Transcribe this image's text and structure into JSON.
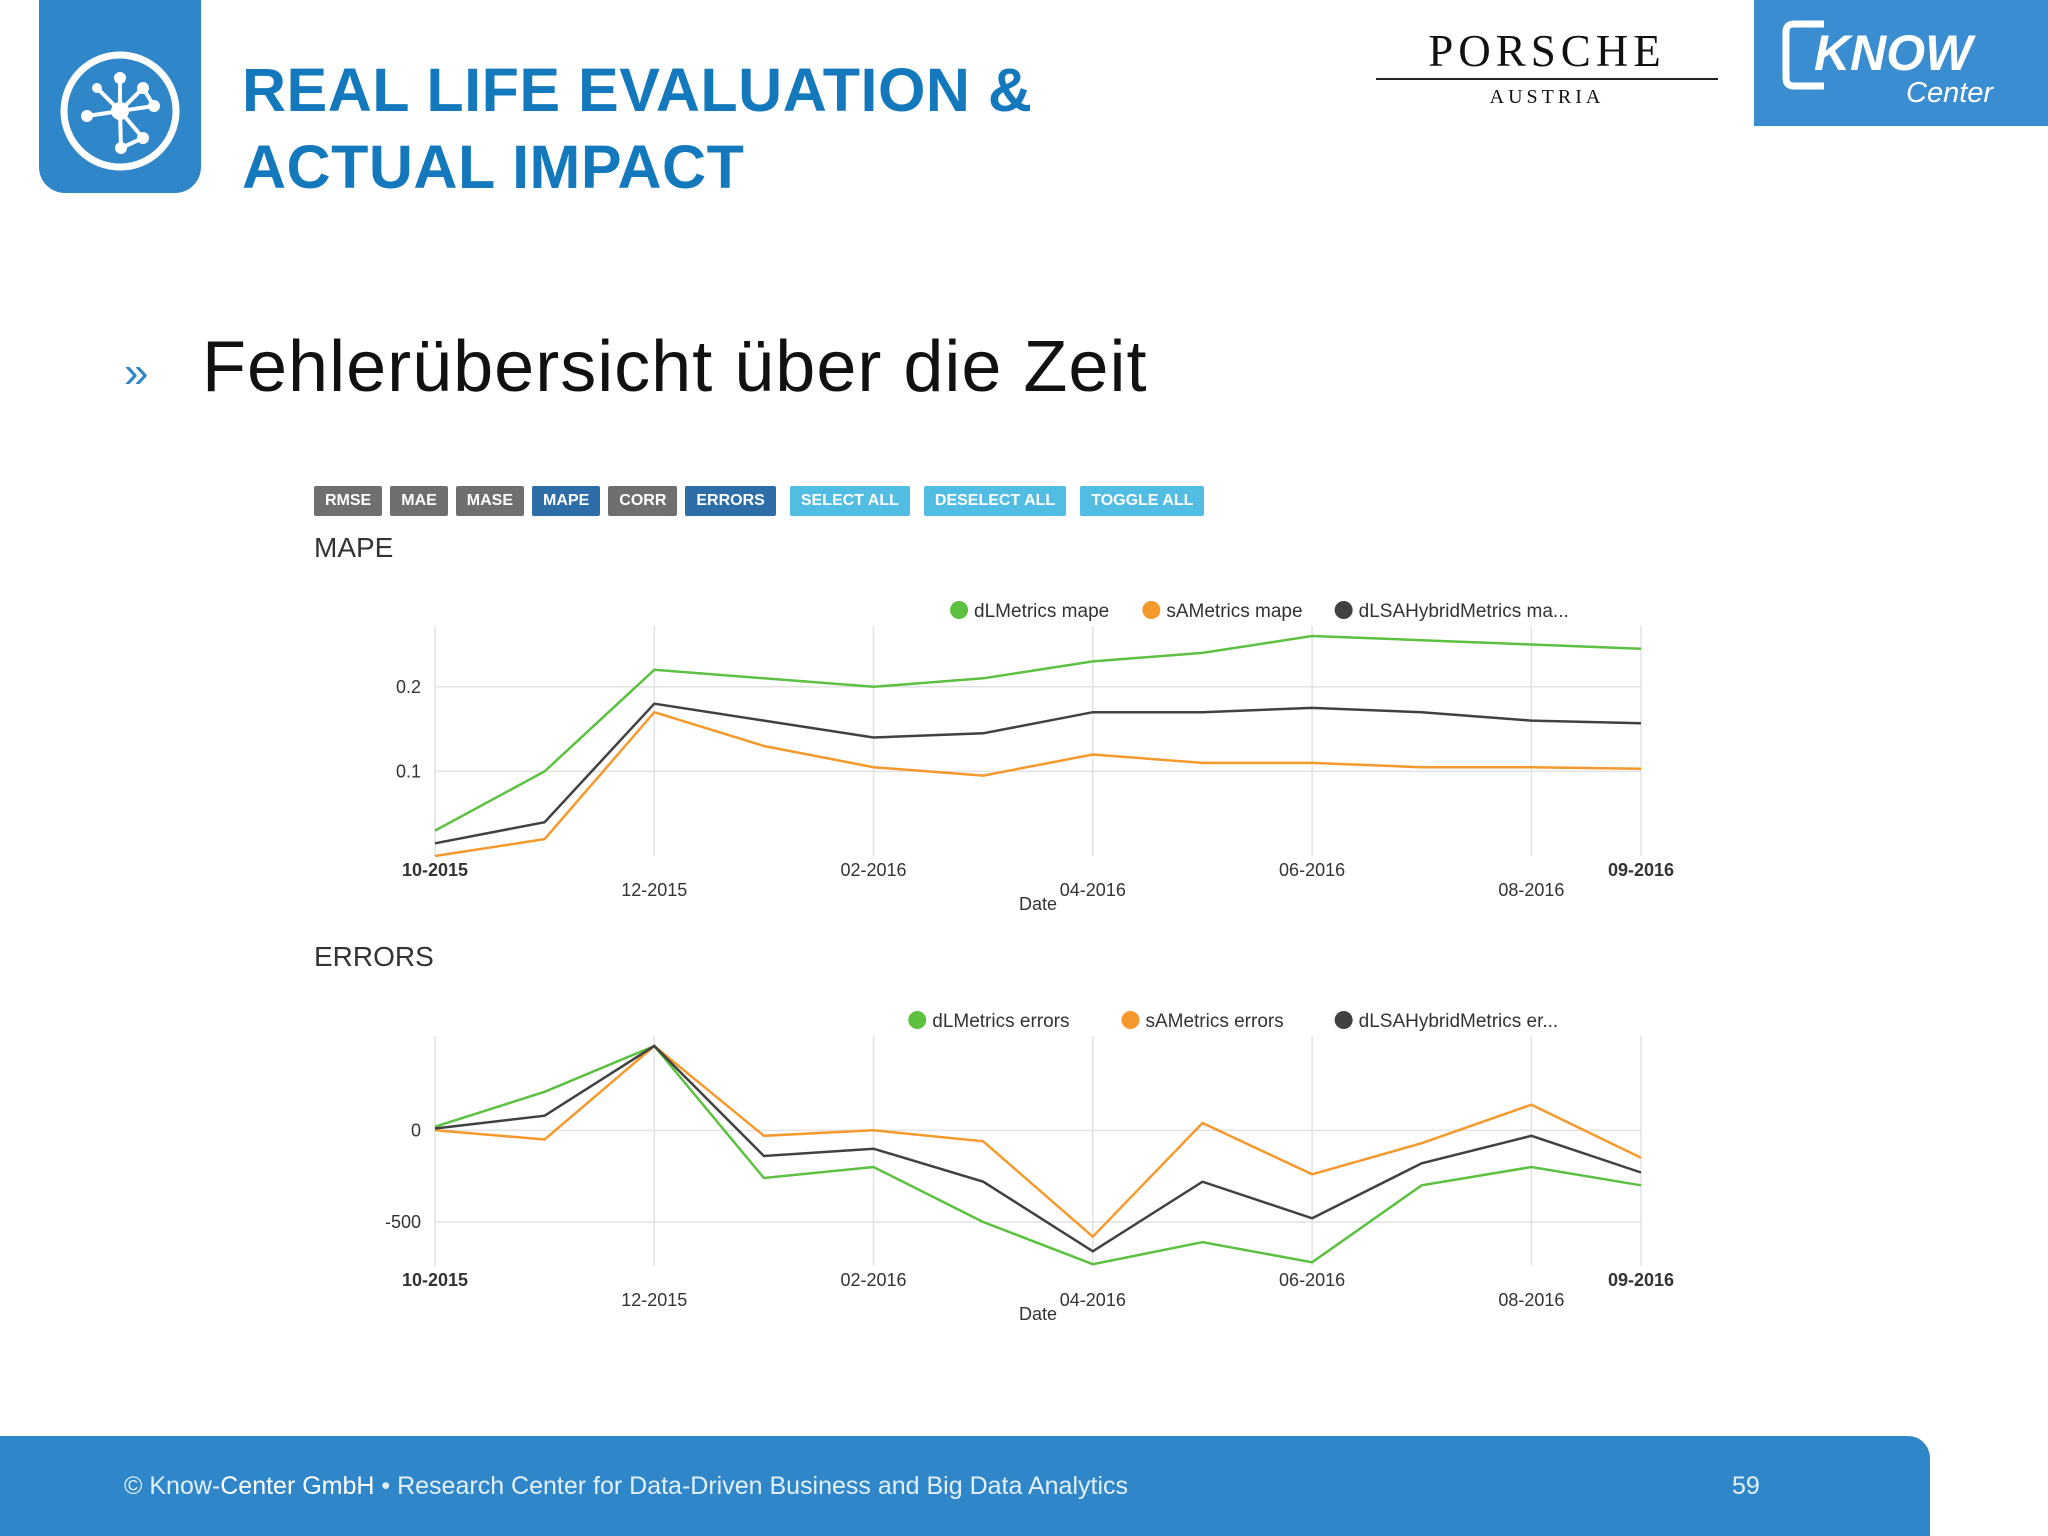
{
  "header": {
    "title_line1": "REAL LIFE EVALUATION &",
    "title_line2": "ACTUAL IMPACT",
    "partner_name": "PORSCHE",
    "partner_sub": "AUSTRIA",
    "brand_top": "KNOW",
    "brand_bottom": "Center"
  },
  "main": {
    "bullet": "»",
    "subtitle": "Fehlerübersicht über die Zeit"
  },
  "toolbar": {
    "buttons": [
      "RMSE",
      "MAE",
      "MASE",
      "MAPE",
      "CORR",
      "ERRORS",
      "SELECT ALL",
      "DESELECT ALL",
      "TOGGLE ALL"
    ]
  },
  "colors": {
    "green": "#5cc040",
    "orange": "#f5992c",
    "dark": "#414141",
    "accent": "#2f86c9"
  },
  "chart_data": [
    {
      "type": "line",
      "title": "MAPE",
      "xlabel": "Date",
      "ylabel": "",
      "x_ticks_upper": [
        "10-2015",
        "02-2016",
        "06-2016",
        "09-2016"
      ],
      "x_ticks_lower": [
        "12-2015",
        "04-2016",
        "08-2016"
      ],
      "y_ticks": [
        "0.2",
        "0.1"
      ],
      "y_tick_values": [
        0.2,
        0.1
      ],
      "x": [
        "2015-10-01",
        "2015-11-01",
        "2015-12-01",
        "2016-01-01",
        "2016-02-01",
        "2016-03-01",
        "2016-04-01",
        "2016-05-01",
        "2016-06-01",
        "2016-07-01",
        "2016-08-01",
        "2016-09-01"
      ],
      "ylim": [
        0.0,
        0.26
      ],
      "grid": true,
      "legend": "top-right",
      "series": [
        {
          "name": "dLMetrics mape",
          "color": "#5cc040",
          "values": [
            0.03,
            0.1,
            0.22,
            0.21,
            0.2,
            0.21,
            0.23,
            0.24,
            0.26,
            0.255,
            0.25,
            0.245
          ]
        },
        {
          "name": "sAMetrics mape",
          "color": "#f5992c",
          "values": [
            0.0,
            0.02,
            0.17,
            0.13,
            0.105,
            0.095,
            0.12,
            0.11,
            0.11,
            0.105,
            0.105,
            0.103
          ]
        },
        {
          "name": "dLSAHybridMetrics ma...",
          "color": "#414141",
          "values": [
            0.015,
            0.04,
            0.18,
            0.16,
            0.14,
            0.145,
            0.17,
            0.17,
            0.175,
            0.17,
            0.16,
            0.157
          ]
        }
      ]
    },
    {
      "type": "line",
      "title": "ERRORS",
      "xlabel": "Date",
      "ylabel": "",
      "x_ticks_upper": [
        "10-2015",
        "02-2016",
        "06-2016",
        "09-2016"
      ],
      "x_ticks_lower": [
        "12-2015",
        "04-2016",
        "08-2016"
      ],
      "y_ticks": [
        "0",
        "-500"
      ],
      "y_tick_values": [
        0,
        -500
      ],
      "x": [
        "2015-10-01",
        "2015-11-01",
        "2015-12-01",
        "2016-01-01",
        "2016-02-01",
        "2016-03-01",
        "2016-04-01",
        "2016-05-01",
        "2016-06-01",
        "2016-07-01",
        "2016-08-01",
        "2016-09-01"
      ],
      "ylim": [
        -740,
        460
      ],
      "grid": true,
      "legend": "top-right",
      "series": [
        {
          "name": "dLMetrics errors",
          "color": "#5cc040",
          "values": [
            20,
            210,
            460,
            -260,
            -200,
            -500,
            -730,
            -610,
            -720,
            -300,
            -200,
            -300
          ]
        },
        {
          "name": "sAMetrics errors",
          "color": "#f5992c",
          "values": [
            0,
            -50,
            460,
            -30,
            0,
            -60,
            -580,
            40,
            -240,
            -70,
            140,
            -150
          ]
        },
        {
          "name": "dLSAHybridMetrics er...",
          "color": "#414141",
          "values": [
            10,
            80,
            460,
            -140,
            -100,
            -280,
            -660,
            -280,
            -480,
            -180,
            -30,
            -230
          ]
        }
      ]
    }
  ],
  "footer": {
    "copyright_prefix": "© Know-",
    "company": "Center GmbH",
    "tagline": " • Research Center for Data-Driven Business and Big Data Analytics",
    "page_number": "59"
  }
}
